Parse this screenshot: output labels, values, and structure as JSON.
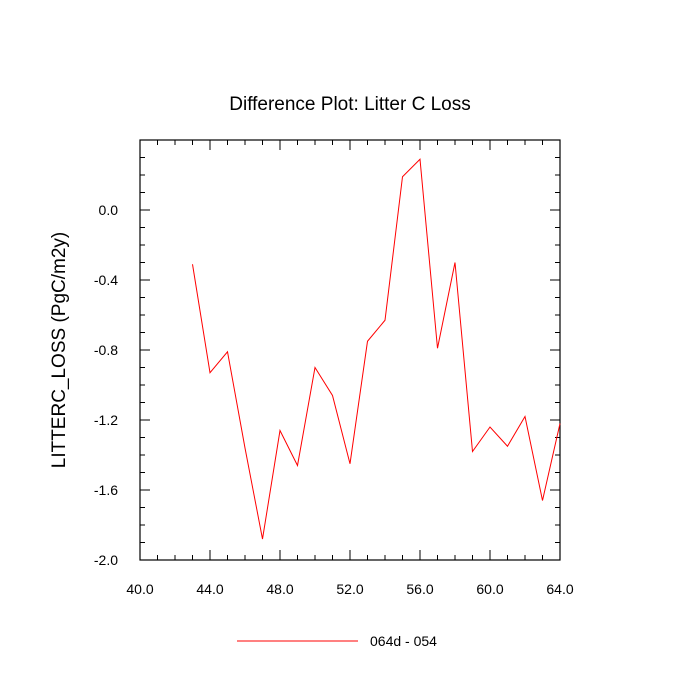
{
  "chart_data": {
    "type": "line",
    "title": "Difference Plot: Litter C Loss",
    "xlabel": "",
    "ylabel": "LITTERC_LOSS  (PgC/m2y)",
    "xlim": [
      40,
      64
    ],
    "ylim": [
      -2.0,
      0.4
    ],
    "x_ticks": [
      40,
      44,
      48,
      52,
      56,
      60,
      64
    ],
    "x_tick_labels": [
      "40.0",
      "44.0",
      "48.0",
      "52.0",
      "56.0",
      "60.0",
      "64.0"
    ],
    "y_ticks": [
      -2.0,
      -1.6,
      -1.2,
      -0.8,
      -0.4,
      0.0
    ],
    "y_tick_labels": [
      "-2.0",
      "-1.6",
      "-1.2",
      "-0.8",
      "-0.4",
      "0.0"
    ],
    "grid": false,
    "legend_position": "bottom-center",
    "series": [
      {
        "name": "064d - 054",
        "color": "#ff0000",
        "x": [
          43,
          44,
          45,
          46,
          47,
          48,
          49,
          50,
          51,
          52,
          53,
          54,
          55,
          56,
          57,
          58,
          59,
          60,
          61,
          62,
          63,
          64
        ],
        "y": [
          -0.31,
          -0.93,
          -0.81,
          -1.36,
          -1.88,
          -1.26,
          -1.46,
          -0.9,
          -1.06,
          -1.45,
          -0.75,
          -0.63,
          0.19,
          0.29,
          -0.79,
          -0.3,
          -1.38,
          -1.24,
          -1.35,
          -1.18,
          -1.66,
          -1.22
        ]
      }
    ]
  }
}
